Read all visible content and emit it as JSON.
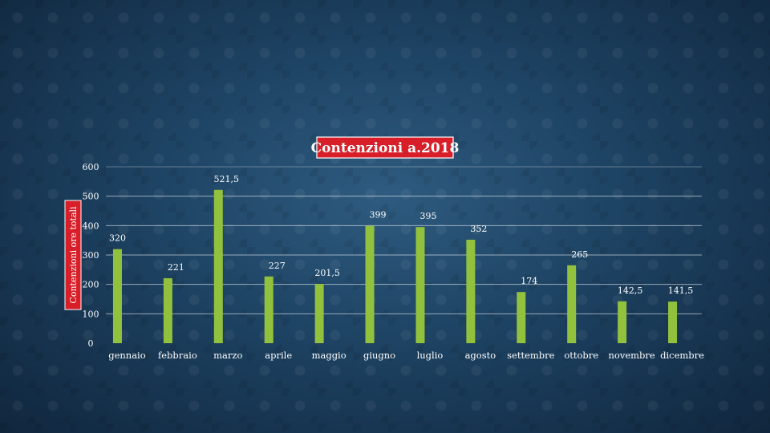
{
  "colors": {
    "bar": "#92c13e",
    "title_background": "#d81e28",
    "text": "#ffffff",
    "background": "#1d4262"
  },
  "chart_data": {
    "type": "bar",
    "title": "Contenzioni a.2018",
    "ylabel": "Contenzioni ore totali",
    "xlabel": "",
    "ylim": [
      0,
      600
    ],
    "yticks": [
      "0",
      "100",
      "200",
      "300",
      "400",
      "500",
      "600"
    ],
    "grid": true,
    "categories": [
      "gennaio",
      "febbraio",
      "marzo",
      "aprile",
      "maggio",
      "giugno",
      "luglio",
      "agosto",
      "settembre",
      "ottobre",
      "novembre",
      "dicembre"
    ],
    "values": [
      320,
      221,
      521.5,
      227,
      201.5,
      399,
      395,
      352,
      174,
      265,
      142.5,
      141.5
    ],
    "data_labels": [
      "320",
      "221",
      "521,5",
      "227",
      "201,5",
      "399",
      "395",
      "352",
      "174",
      "265",
      "142,5",
      "141,5"
    ]
  }
}
